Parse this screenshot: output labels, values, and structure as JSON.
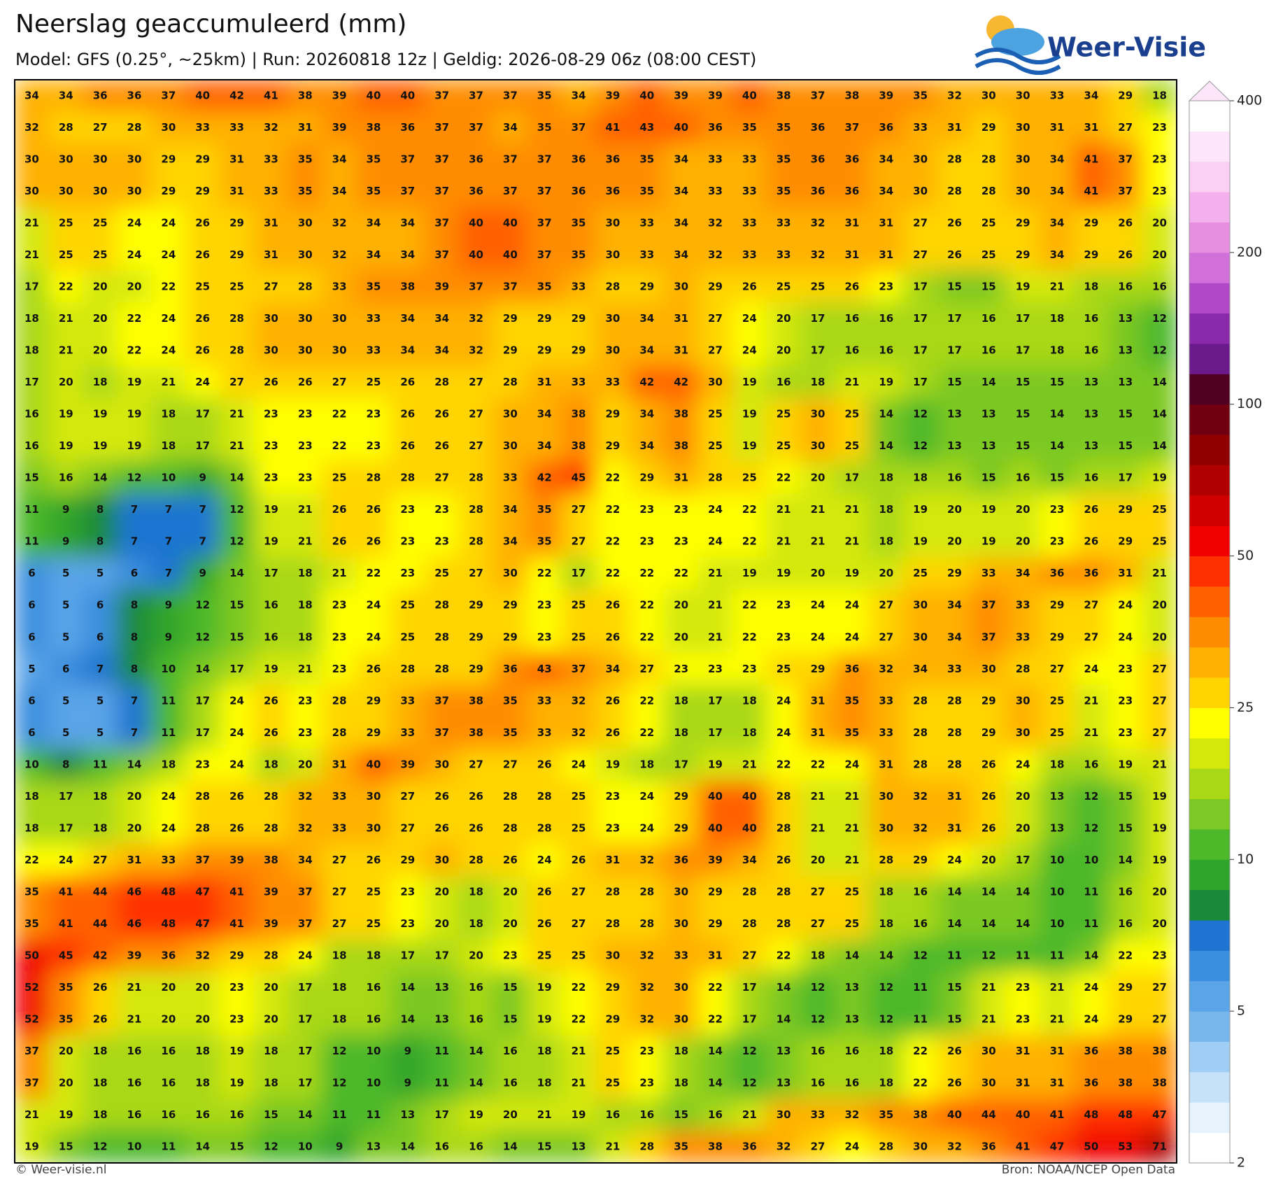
{
  "header": {
    "title": "Neerslag geaccumuleerd (mm)",
    "subtitle": "Model: GFS (0.25°, ~25km)  |  Run: 20260818 12z  |  Geldig: 2026-08-29 06z (08:00 CEST)",
    "logo": "Weer-Visie"
  },
  "footer": {
    "left": "© Weer-visie.nl",
    "right": "Bron: NOAA/NCEP Open Data"
  },
  "colorbar": {
    "ticks": [
      2,
      5,
      10,
      25,
      50,
      100,
      200,
      400
    ],
    "colors": [
      "#ffffff",
      "#e6f2fc",
      "#c6e2f9",
      "#a0cdf4",
      "#78b6ee",
      "#5aa4e8",
      "#3a8ede",
      "#1e74d0",
      "#1a8a3a",
      "#30a52c",
      "#4cb82a",
      "#7cc824",
      "#a8d816",
      "#d4e80c",
      "#ffff00",
      "#ffd400",
      "#ffb000",
      "#ff8c00",
      "#ff6000",
      "#ff3000",
      "#f00000",
      "#d00000",
      "#b00000",
      "#900000",
      "#700010",
      "#500020",
      "#6a1a8a",
      "#8a2aaa",
      "#b048c8",
      "#d070d8",
      "#e88ee0",
      "#f4b0ec",
      "#fad0f4",
      "#fde6fa",
      "#ffffff"
    ]
  },
  "map": {
    "grid": [
      [
        34,
        34,
        36,
        36,
        37,
        40,
        42,
        41,
        38,
        39,
        40,
        40,
        37,
        37,
        37,
        35,
        34,
        39,
        40,
        39,
        39,
        40,
        38,
        37,
        38,
        39,
        35,
        32,
        30,
        30,
        33,
        34,
        29,
        18
      ],
      [
        32,
        28,
        27,
        28,
        30,
        33,
        33,
        32,
        31,
        39,
        38,
        36,
        37,
        37,
        34,
        35,
        37,
        41,
        43,
        40,
        36,
        35,
        35,
        36,
        37,
        36,
        33,
        31,
        29,
        30,
        31,
        31,
        27,
        23
      ],
      [
        30,
        30,
        30,
        30,
        29,
        29,
        31,
        33,
        35,
        34,
        35,
        37,
        37,
        36,
        37,
        37,
        36,
        36,
        35,
        34,
        33,
        33,
        35,
        36,
        36,
        34,
        30,
        28,
        28,
        30,
        34,
        41,
        37,
        23
      ],
      [
        30,
        30,
        30,
        30,
        29,
        29,
        31,
        33,
        35,
        34,
        35,
        37,
        37,
        36,
        37,
        37,
        36,
        36,
        35,
        34,
        33,
        33,
        35,
        36,
        36,
        34,
        30,
        28,
        28,
        30,
        34,
        41,
        37,
        23
      ],
      [
        21,
        25,
        25,
        24,
        24,
        26,
        29,
        31,
        30,
        32,
        34,
        34,
        37,
        40,
        40,
        37,
        35,
        30,
        33,
        34,
        32,
        33,
        33,
        32,
        31,
        31,
        27,
        26,
        25,
        29,
        34,
        29,
        26,
        20
      ],
      [
        21,
        25,
        25,
        24,
        24,
        26,
        29,
        31,
        30,
        32,
        34,
        34,
        37,
        40,
        40,
        37,
        35,
        30,
        33,
        34,
        32,
        33,
        33,
        32,
        31,
        31,
        27,
        26,
        25,
        29,
        34,
        29,
        26,
        20
      ],
      [
        17,
        22,
        20,
        20,
        22,
        25,
        25,
        27,
        28,
        33,
        35,
        38,
        39,
        37,
        37,
        35,
        33,
        28,
        29,
        30,
        29,
        26,
        25,
        25,
        26,
        23,
        17,
        15,
        15,
        19,
        21,
        18,
        16,
        16
      ],
      [
        18,
        21,
        20,
        22,
        24,
        26,
        28,
        30,
        30,
        30,
        33,
        34,
        34,
        32,
        29,
        29,
        29,
        30,
        34,
        31,
        27,
        24,
        20,
        17,
        16,
        16,
        17,
        17,
        16,
        17,
        18,
        16,
        13,
        12
      ],
      [
        18,
        21,
        20,
        22,
        24,
        26,
        28,
        30,
        30,
        30,
        33,
        34,
        34,
        32,
        29,
        29,
        29,
        30,
        34,
        31,
        27,
        24,
        20,
        17,
        16,
        16,
        17,
        17,
        16,
        17,
        18,
        16,
        13,
        12
      ],
      [
        17,
        20,
        18,
        19,
        21,
        24,
        27,
        26,
        26,
        27,
        25,
        26,
        28,
        27,
        28,
        31,
        33,
        33,
        42,
        42,
        30,
        19,
        16,
        18,
        21,
        19,
        17,
        15,
        14,
        15,
        15,
        13,
        13,
        14
      ],
      [
        16,
        19,
        19,
        19,
        18,
        17,
        21,
        23,
        23,
        22,
        23,
        26,
        26,
        27,
        30,
        34,
        38,
        29,
        34,
        38,
        25,
        19,
        25,
        30,
        25,
        14,
        12,
        13,
        13,
        15,
        14,
        13,
        15,
        14
      ],
      [
        16,
        19,
        19,
        19,
        18,
        17,
        21,
        23,
        23,
        22,
        23,
        26,
        26,
        27,
        30,
        34,
        38,
        29,
        34,
        38,
        25,
        19,
        25,
        30,
        25,
        14,
        12,
        13,
        13,
        15,
        14,
        13,
        15,
        14
      ],
      [
        15,
        16,
        14,
        12,
        10,
        9,
        14,
        23,
        23,
        25,
        28,
        28,
        27,
        28,
        33,
        42,
        45,
        22,
        29,
        31,
        28,
        25,
        22,
        20,
        17,
        18,
        18,
        16,
        15,
        16,
        15,
        16,
        17,
        19
      ],
      [
        11,
        9,
        8,
        7,
        7,
        7,
        12,
        19,
        21,
        26,
        26,
        23,
        23,
        28,
        34,
        35,
        27,
        22,
        23,
        23,
        24,
        22,
        21,
        21,
        21,
        18,
        19,
        20,
        19,
        20,
        23,
        26,
        29,
        25
      ],
      [
        11,
        9,
        8,
        7,
        7,
        7,
        12,
        19,
        21,
        26,
        26,
        23,
        23,
        28,
        34,
        35,
        27,
        22,
        23,
        23,
        24,
        22,
        21,
        21,
        21,
        18,
        19,
        20,
        19,
        20,
        23,
        26,
        29,
        25
      ],
      [
        6,
        5,
        5,
        6,
        7,
        9,
        14,
        17,
        18,
        21,
        22,
        23,
        25,
        27,
        30,
        22,
        17,
        22,
        22,
        22,
        21,
        19,
        19,
        20,
        19,
        20,
        25,
        29,
        33,
        34,
        36,
        36,
        31,
        21
      ],
      [
        6,
        5,
        6,
        8,
        9,
        12,
        15,
        16,
        18,
        23,
        24,
        25,
        28,
        29,
        29,
        23,
        25,
        26,
        22,
        20,
        21,
        22,
        23,
        24,
        24,
        27,
        30,
        34,
        37,
        33,
        29,
        27,
        24,
        20
      ],
      [
        6,
        5,
        6,
        8,
        9,
        12,
        15,
        16,
        18,
        23,
        24,
        25,
        28,
        29,
        29,
        23,
        25,
        26,
        22,
        20,
        21,
        22,
        23,
        24,
        24,
        27,
        30,
        34,
        37,
        33,
        29,
        27,
        24,
        20
      ],
      [
        5,
        6,
        7,
        8,
        10,
        14,
        17,
        19,
        21,
        23,
        26,
        28,
        28,
        29,
        36,
        43,
        37,
        34,
        27,
        23,
        23,
        23,
        25,
        29,
        36,
        32,
        34,
        33,
        30,
        28,
        27,
        24,
        23,
        27
      ],
      [
        6,
        5,
        5,
        7,
        11,
        17,
        24,
        26,
        23,
        28,
        29,
        33,
        37,
        38,
        35,
        33,
        32,
        26,
        22,
        18,
        17,
        18,
        24,
        31,
        35,
        33,
        28,
        28,
        29,
        30,
        25,
        21,
        23,
        27
      ],
      [
        6,
        5,
        5,
        7,
        11,
        17,
        24,
        26,
        23,
        28,
        29,
        33,
        37,
        38,
        35,
        33,
        32,
        26,
        22,
        18,
        17,
        18,
        24,
        31,
        35,
        33,
        28,
        28,
        29,
        30,
        25,
        21,
        23,
        27
      ],
      [
        10,
        8,
        11,
        14,
        18,
        23,
        24,
        18,
        20,
        31,
        40,
        39,
        30,
        27,
        27,
        26,
        24,
        19,
        18,
        17,
        19,
        21,
        22,
        22,
        24,
        31,
        28,
        28,
        26,
        24,
        18,
        16,
        19,
        21
      ],
      [
        18,
        17,
        18,
        20,
        24,
        28,
        26,
        28,
        32,
        33,
        30,
        27,
        26,
        26,
        28,
        28,
        25,
        23,
        24,
        29,
        40,
        40,
        28,
        21,
        21,
        30,
        32,
        31,
        26,
        20,
        13,
        12,
        15,
        19
      ],
      [
        18,
        17,
        18,
        20,
        24,
        28,
        26,
        28,
        32,
        33,
        30,
        27,
        26,
        26,
        28,
        28,
        25,
        23,
        24,
        29,
        40,
        40,
        28,
        21,
        21,
        30,
        32,
        31,
        26,
        20,
        13,
        12,
        15,
        19
      ],
      [
        22,
        24,
        27,
        31,
        33,
        37,
        39,
        38,
        34,
        27,
        26,
        29,
        30,
        28,
        26,
        24,
        26,
        31,
        32,
        36,
        39,
        34,
        26,
        20,
        21,
        28,
        29,
        24,
        20,
        17,
        10,
        10,
        14,
        19
      ],
      [
        35,
        41,
        44,
        46,
        48,
        47,
        41,
        39,
        37,
        27,
        25,
        23,
        20,
        18,
        20,
        26,
        27,
        28,
        28,
        30,
        29,
        28,
        28,
        27,
        25,
        18,
        16,
        14,
        14,
        14,
        10,
        11,
        16,
        20
      ],
      [
        35,
        41,
        44,
        46,
        48,
        47,
        41,
        39,
        37,
        27,
        25,
        23,
        20,
        18,
        20,
        26,
        27,
        28,
        28,
        30,
        29,
        28,
        28,
        27,
        25,
        18,
        16,
        14,
        14,
        14,
        10,
        11,
        16,
        20
      ],
      [
        50,
        45,
        42,
        39,
        36,
        32,
        29,
        28,
        24,
        18,
        18,
        17,
        17,
        20,
        23,
        25,
        25,
        30,
        32,
        33,
        31,
        27,
        22,
        18,
        14,
        14,
        12,
        11,
        12,
        11,
        11,
        14,
        22,
        23
      ],
      [
        52,
        35,
        26,
        21,
        20,
        20,
        23,
        20,
        17,
        18,
        16,
        14,
        13,
        16,
        15,
        19,
        22,
        29,
        32,
        30,
        22,
        17,
        14,
        12,
        13,
        12,
        11,
        15,
        21,
        23,
        21,
        24,
        29,
        27
      ],
      [
        52,
        35,
        26,
        21,
        20,
        20,
        23,
        20,
        17,
        18,
        16,
        14,
        13,
        16,
        15,
        19,
        22,
        29,
        32,
        30,
        22,
        17,
        14,
        12,
        13,
        12,
        11,
        15,
        21,
        23,
        21,
        24,
        29,
        27
      ],
      [
        37,
        20,
        18,
        16,
        16,
        18,
        19,
        18,
        17,
        12,
        10,
        9,
        11,
        14,
        16,
        18,
        21,
        25,
        23,
        18,
        14,
        12,
        13,
        16,
        16,
        18,
        22,
        26,
        30,
        31,
        31,
        36,
        38,
        38
      ],
      [
        37,
        20,
        18,
        16,
        16,
        18,
        19,
        18,
        17,
        12,
        10,
        9,
        11,
        14,
        16,
        18,
        21,
        25,
        23,
        18,
        14,
        12,
        13,
        16,
        16,
        18,
        22,
        26,
        30,
        31,
        31,
        36,
        38,
        38
      ],
      [
        21,
        19,
        18,
        16,
        16,
        16,
        16,
        15,
        14,
        11,
        11,
        13,
        17,
        19,
        20,
        21,
        19,
        16,
        16,
        15,
        16,
        21,
        30,
        33,
        32,
        35,
        38,
        40,
        44,
        40,
        41,
        48,
        48,
        47
      ],
      [
        19,
        15,
        12,
        10,
        11,
        14,
        15,
        12,
        10,
        9,
        13,
        14,
        16,
        16,
        14,
        15,
        13,
        21,
        28,
        35,
        38,
        36,
        32,
        27,
        24,
        28,
        30,
        32,
        36,
        41,
        47,
        50,
        53,
        71
      ]
    ]
  }
}
